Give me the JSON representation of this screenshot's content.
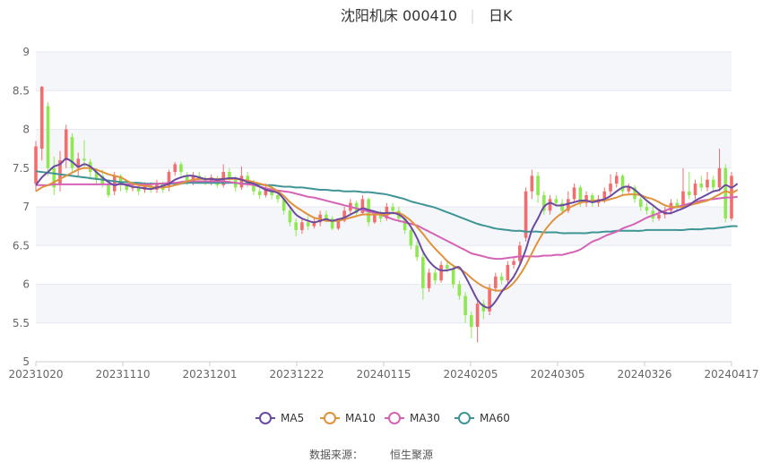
{
  "header": {
    "title": "沈阳机床 000410",
    "period": "日K"
  },
  "footer": {
    "source_label": "数据来源：",
    "source_name": "恒生聚源"
  },
  "chart_data": {
    "type": "candlestick",
    "ylim": [
      5,
      9
    ],
    "yticks": [
      5,
      5.5,
      6,
      6.5,
      7,
      7.5,
      8,
      8.5,
      9
    ],
    "xticks": [
      "20231020",
      "20231110",
      "20231201",
      "20231222",
      "20240115",
      "20240205",
      "20240305",
      "20240326",
      "20240417"
    ],
    "grid": true,
    "legend_position": "bottom",
    "colors": {
      "up": "#f26d6d",
      "down": "#8ee84f",
      "grid": "#e6e8f2",
      "band": "#f5f6fa",
      "MA5": "#6b4aa0",
      "MA10": "#e0923d",
      "MA30": "#d463b6",
      "MA60": "#3f9595"
    },
    "candles": [
      [
        7.3,
        7.78,
        7.85,
        7.2
      ],
      [
        7.75,
        8.55,
        8.56,
        7.6
      ],
      [
        8.3,
        7.5,
        8.35,
        7.4
      ],
      [
        7.5,
        7.25,
        7.65,
        7.15
      ],
      [
        7.3,
        7.6,
        7.72,
        7.2
      ],
      [
        7.6,
        8.0,
        8.06,
        7.5
      ],
      [
        7.9,
        7.5,
        7.95,
        7.45
      ],
      [
        7.5,
        7.62,
        7.7,
        7.4
      ],
      [
        7.62,
        7.6,
        7.86,
        7.5
      ],
      [
        7.58,
        7.45,
        7.62,
        7.35
      ],
      [
        7.45,
        7.35,
        7.5,
        7.3
      ],
      [
        7.4,
        7.3,
        7.48,
        7.25
      ],
      [
        7.3,
        7.15,
        7.35,
        7.12
      ],
      [
        7.2,
        7.4,
        7.45,
        7.15
      ],
      [
        7.4,
        7.28,
        7.42,
        7.2
      ],
      [
        7.3,
        7.22,
        7.35,
        7.18
      ],
      [
        7.25,
        7.25,
        7.3,
        7.2
      ],
      [
        7.25,
        7.2,
        7.3,
        7.15
      ],
      [
        7.22,
        7.28,
        7.32,
        7.18
      ],
      [
        7.28,
        7.22,
        7.32,
        7.18
      ],
      [
        7.22,
        7.3,
        7.35,
        7.18
      ],
      [
        7.3,
        7.22,
        7.33,
        7.18
      ],
      [
        7.25,
        7.45,
        7.48,
        7.2
      ],
      [
        7.45,
        7.55,
        7.58,
        7.4
      ],
      [
        7.55,
        7.45,
        7.58,
        7.4
      ],
      [
        7.4,
        7.3,
        7.45,
        7.28
      ],
      [
        7.3,
        7.4,
        7.45,
        7.28
      ],
      [
        7.4,
        7.35,
        7.45,
        7.3
      ],
      [
        7.35,
        7.3,
        7.4,
        7.28
      ],
      [
        7.3,
        7.38,
        7.42,
        7.28
      ],
      [
        7.35,
        7.28,
        7.4,
        7.25
      ],
      [
        7.28,
        7.45,
        7.55,
        7.25
      ],
      [
        7.45,
        7.35,
        7.5,
        7.3
      ],
      [
        7.35,
        7.25,
        7.4,
        7.2
      ],
      [
        7.25,
        7.4,
        7.52,
        7.22
      ],
      [
        7.4,
        7.3,
        7.45,
        7.25
      ],
      [
        7.3,
        7.2,
        7.35,
        7.15
      ],
      [
        7.2,
        7.15,
        7.25,
        7.1
      ],
      [
        7.15,
        7.25,
        7.3,
        7.12
      ],
      [
        7.25,
        7.15,
        7.28,
        7.1
      ],
      [
        7.15,
        7.1,
        7.2,
        7.05
      ],
      [
        7.1,
        6.95,
        7.12,
        6.9
      ],
      [
        6.95,
        6.8,
        7.0,
        6.75
      ],
      [
        6.8,
        6.7,
        6.85,
        6.62
      ],
      [
        6.7,
        6.8,
        6.85,
        6.65
      ],
      [
        6.8,
        6.75,
        6.88,
        6.7
      ],
      [
        6.75,
        6.8,
        6.85,
        6.72
      ],
      [
        6.8,
        6.9,
        6.95,
        6.75
      ],
      [
        6.9,
        6.85,
        6.95,
        6.8
      ],
      [
        6.85,
        6.72,
        6.88,
        6.7
      ],
      [
        6.72,
        6.82,
        6.85,
        6.7
      ],
      [
        6.82,
        6.95,
        7.0,
        6.8
      ],
      [
        6.95,
        7.05,
        7.1,
        6.9
      ],
      [
        7.05,
        6.92,
        7.08,
        6.88
      ],
      [
        6.92,
        7.1,
        7.15,
        6.9
      ],
      [
        7.1,
        6.8,
        7.12,
        6.75
      ],
      [
        6.8,
        6.9,
        6.95,
        6.78
      ],
      [
        6.9,
        6.85,
        6.95,
        6.8
      ],
      [
        6.85,
        7.0,
        7.05,
        6.82
      ],
      [
        7.0,
        6.95,
        7.05,
        6.9
      ],
      [
        6.95,
        6.85,
        7.0,
        6.8
      ],
      [
        6.85,
        6.7,
        6.9,
        6.65
      ],
      [
        6.7,
        6.5,
        6.75,
        6.45
      ],
      [
        6.5,
        6.35,
        6.55,
        6.3
      ],
      [
        6.35,
        5.95,
        6.4,
        5.8
      ],
      [
        5.95,
        6.15,
        6.2,
        5.9
      ],
      [
        6.15,
        6.05,
        6.2,
        6.0
      ],
      [
        6.05,
        6.25,
        6.3,
        6.02
      ],
      [
        6.25,
        6.2,
        6.3,
        6.15
      ],
      [
        6.2,
        6.0,
        6.25,
        5.95
      ],
      [
        6.0,
        5.85,
        6.05,
        5.8
      ],
      [
        5.85,
        5.6,
        5.9,
        5.5
      ],
      [
        5.6,
        5.45,
        5.65,
        5.3
      ],
      [
        5.45,
        5.75,
        5.8,
        5.25
      ],
      [
        5.75,
        5.65,
        5.8,
        5.55
      ],
      [
        5.65,
        5.95,
        6.0,
        5.6
      ],
      [
        5.95,
        6.1,
        6.15,
        5.9
      ],
      [
        6.1,
        6.05,
        6.15,
        6.0
      ],
      [
        6.05,
        6.25,
        6.3,
        6.0
      ],
      [
        6.25,
        6.3,
        6.35,
        6.2
      ],
      [
        6.3,
        6.5,
        6.55,
        6.25
      ],
      [
        6.6,
        7.2,
        7.25,
        6.55
      ],
      [
        7.2,
        7.4,
        7.48,
        7.1
      ],
      [
        7.4,
        7.15,
        7.45,
        7.05
      ],
      [
        7.15,
        6.95,
        7.2,
        6.9
      ],
      [
        6.95,
        7.1,
        7.15,
        6.9
      ],
      [
        7.1,
        7.05,
        7.15,
        7.0
      ],
      [
        7.05,
        6.95,
        7.1,
        6.9
      ],
      [
        6.95,
        7.1,
        7.2,
        6.92
      ],
      [
        7.1,
        7.25,
        7.3,
        7.05
      ],
      [
        7.25,
        7.05,
        7.28,
        7.0
      ],
      [
        7.05,
        7.15,
        7.2,
        7.0
      ],
      [
        7.15,
        7.05,
        7.18,
        7.0
      ],
      [
        7.05,
        7.1,
        7.15,
        7.0
      ],
      [
        7.1,
        7.2,
        7.25,
        7.05
      ],
      [
        7.2,
        7.3,
        7.42,
        7.15
      ],
      [
        7.3,
        7.4,
        7.45,
        7.25
      ],
      [
        7.4,
        7.2,
        7.42,
        7.15
      ],
      [
        7.2,
        7.25,
        7.3,
        7.15
      ],
      [
        7.25,
        7.1,
        7.28,
        7.05
      ],
      [
        7.1,
        7.0,
        7.15,
        6.95
      ],
      [
        7.0,
        6.95,
        7.05,
        6.9
      ],
      [
        6.95,
        6.85,
        7.0,
        6.8
      ],
      [
        6.85,
        6.9,
        6.95,
        6.82
      ],
      [
        6.9,
        6.95,
        7.0,
        6.85
      ],
      [
        6.95,
        7.05,
        7.1,
        6.9
      ],
      [
        7.05,
        7.0,
        7.1,
        6.95
      ],
      [
        7.0,
        7.2,
        7.5,
        6.98
      ],
      [
        7.2,
        7.15,
        7.45,
        7.1
      ],
      [
        7.15,
        7.3,
        7.35,
        7.1
      ],
      [
        7.3,
        7.25,
        7.4,
        7.2
      ],
      [
        7.25,
        7.35,
        7.45,
        7.2
      ],
      [
        7.35,
        7.25,
        7.4,
        7.2
      ],
      [
        7.25,
        7.5,
        7.75,
        7.2
      ],
      [
        7.5,
        6.85,
        7.55,
        6.8
      ],
      [
        6.85,
        7.4,
        7.45,
        6.82
      ]
    ],
    "series": [
      {
        "name": "MA5",
        "values": [
          7.28,
          7.38,
          7.45,
          7.52,
          7.55,
          7.62,
          7.58,
          7.52,
          7.55,
          7.52,
          7.45,
          7.38,
          7.32,
          7.28,
          7.3,
          7.28,
          7.26,
          7.25,
          7.24,
          7.23,
          7.25,
          7.27,
          7.3,
          7.35,
          7.38,
          7.4,
          7.4,
          7.38,
          7.36,
          7.36,
          7.35,
          7.36,
          7.37,
          7.37,
          7.35,
          7.32,
          7.3,
          7.26,
          7.22,
          7.2,
          7.18,
          7.1,
          7.0,
          6.9,
          6.85,
          6.82,
          6.8,
          6.82,
          6.84,
          6.82,
          6.84,
          6.86,
          6.9,
          6.94,
          6.98,
          6.96,
          6.94,
          6.92,
          6.92,
          6.92,
          6.9,
          6.84,
          6.74,
          6.6,
          6.42,
          6.3,
          6.22,
          6.18,
          6.18,
          6.2,
          6.22,
          6.1,
          5.95,
          5.8,
          5.72,
          5.7,
          5.78,
          5.9,
          6.0,
          6.1,
          6.25,
          6.45,
          6.7,
          6.85,
          7.0,
          7.05,
          7.02,
          7.02,
          7.04,
          7.06,
          7.08,
          7.08,
          7.06,
          7.08,
          7.1,
          7.14,
          7.2,
          7.25,
          7.26,
          7.22,
          7.15,
          7.08,
          7.02,
          6.96,
          6.92,
          6.92,
          6.95,
          6.98,
          7.02,
          7.08,
          7.12,
          7.16,
          7.2,
          7.22,
          7.28,
          7.25,
          7.3
        ]
      },
      {
        "name": "MA10",
        "values": [
          7.2,
          7.25,
          7.28,
          7.32,
          7.36,
          7.4,
          7.44,
          7.48,
          7.5,
          7.5,
          7.48,
          7.45,
          7.42,
          7.4,
          7.38,
          7.34,
          7.3,
          7.28,
          7.27,
          7.26,
          7.25,
          7.25,
          7.26,
          7.28,
          7.3,
          7.33,
          7.35,
          7.36,
          7.36,
          7.36,
          7.36,
          7.36,
          7.36,
          7.36,
          7.35,
          7.34,
          7.32,
          7.3,
          7.28,
          7.25,
          7.2,
          7.14,
          7.06,
          7.0,
          6.95,
          6.9,
          6.86,
          6.84,
          6.82,
          6.82,
          6.82,
          6.84,
          6.86,
          6.88,
          6.9,
          6.9,
          6.9,
          6.9,
          6.9,
          6.92,
          6.92,
          6.88,
          6.82,
          6.74,
          6.65,
          6.55,
          6.46,
          6.38,
          6.3,
          6.24,
          6.2,
          6.15,
          6.08,
          6.02,
          5.97,
          5.94,
          5.92,
          5.92,
          5.95,
          6.02,
          6.12,
          6.25,
          6.4,
          6.55,
          6.68,
          6.78,
          6.86,
          6.92,
          6.98,
          7.02,
          7.05,
          7.07,
          7.08,
          7.08,
          7.08,
          7.1,
          7.12,
          7.15,
          7.16,
          7.16,
          7.15,
          7.12,
          7.1,
          7.06,
          7.02,
          7.0,
          7.0,
          7.0,
          7.02,
          7.04,
          7.06,
          7.08,
          7.12,
          7.16,
          7.2,
          7.18,
          7.22
        ]
      },
      {
        "name": "MA30",
        "values": [
          7.28,
          7.28,
          7.28,
          7.29,
          7.29,
          7.29,
          7.29,
          7.29,
          7.29,
          7.29,
          7.29,
          7.29,
          7.29,
          7.29,
          7.29,
          7.29,
          7.29,
          7.29,
          7.29,
          7.29,
          7.3,
          7.3,
          7.31,
          7.31,
          7.32,
          7.33,
          7.33,
          7.33,
          7.33,
          7.33,
          7.33,
          7.33,
          7.32,
          7.31,
          7.3,
          7.29,
          7.28,
          7.26,
          7.24,
          7.22,
          7.21,
          7.2,
          7.19,
          7.17,
          7.15,
          7.13,
          7.12,
          7.1,
          7.08,
          7.06,
          7.04,
          7.02,
          7.0,
          6.98,
          6.96,
          6.94,
          6.92,
          6.9,
          6.87,
          6.84,
          6.82,
          6.8,
          6.78,
          6.76,
          6.72,
          6.68,
          6.64,
          6.6,
          6.56,
          6.52,
          6.48,
          6.44,
          6.4,
          6.38,
          6.36,
          6.34,
          6.33,
          6.33,
          6.34,
          6.35,
          6.36,
          6.36,
          6.36,
          6.36,
          6.37,
          6.37,
          6.38,
          6.38,
          6.4,
          6.42,
          6.45,
          6.5,
          6.55,
          6.58,
          6.62,
          6.65,
          6.68,
          6.72,
          6.75,
          6.78,
          6.82,
          6.86,
          6.89,
          6.92,
          6.95,
          6.98,
          7.0,
          7.02,
          7.04,
          7.06,
          7.08,
          7.09,
          7.1,
          7.11,
          7.12,
          7.12,
          7.13
        ]
      },
      {
        "name": "MA60",
        "values": [
          7.46,
          7.45,
          7.44,
          7.43,
          7.42,
          7.41,
          7.4,
          7.39,
          7.38,
          7.37,
          7.36,
          7.35,
          7.34,
          7.33,
          7.32,
          7.32,
          7.31,
          7.31,
          7.3,
          7.3,
          7.3,
          7.3,
          7.3,
          7.3,
          7.3,
          7.31,
          7.31,
          7.31,
          7.31,
          7.31,
          7.31,
          7.31,
          7.31,
          7.31,
          7.3,
          7.3,
          7.29,
          7.29,
          7.28,
          7.28,
          7.27,
          7.26,
          7.26,
          7.25,
          7.25,
          7.24,
          7.23,
          7.22,
          7.22,
          7.21,
          7.21,
          7.2,
          7.2,
          7.2,
          7.19,
          7.19,
          7.18,
          7.17,
          7.16,
          7.14,
          7.12,
          7.1,
          7.07,
          7.05,
          7.03,
          7.01,
          6.99,
          6.96,
          6.93,
          6.9,
          6.87,
          6.84,
          6.81,
          6.78,
          6.76,
          6.74,
          6.72,
          6.71,
          6.7,
          6.69,
          6.69,
          6.68,
          6.68,
          6.68,
          6.67,
          6.67,
          6.67,
          6.66,
          6.66,
          6.66,
          6.66,
          6.66,
          6.67,
          6.67,
          6.68,
          6.68,
          6.69,
          6.69,
          6.69,
          6.69,
          6.69,
          6.7,
          6.7,
          6.7,
          6.7,
          6.7,
          6.7,
          6.7,
          6.71,
          6.71,
          6.71,
          6.72,
          6.72,
          6.73,
          6.74,
          6.75,
          6.75
        ]
      }
    ]
  }
}
